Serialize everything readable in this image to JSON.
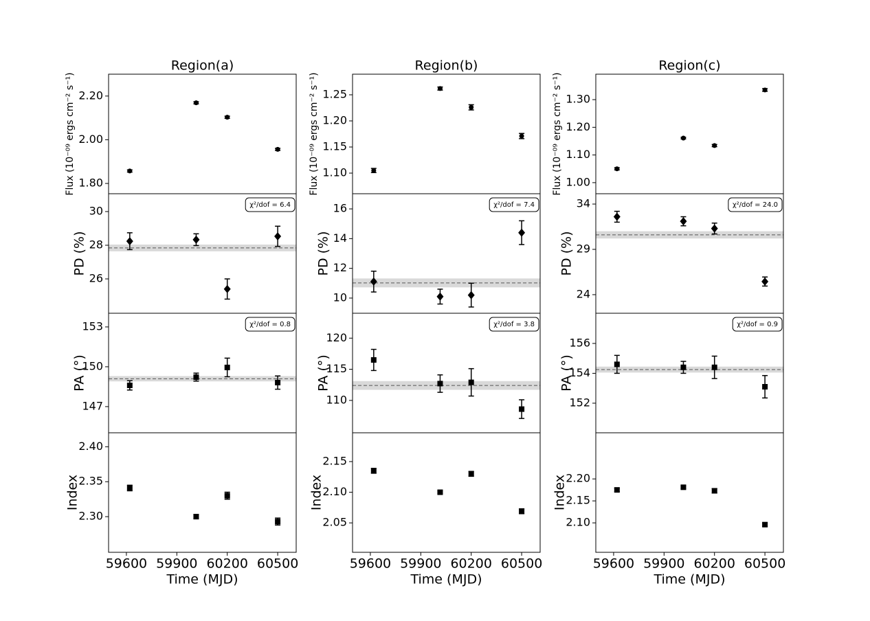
{
  "chart_data": [
    {
      "type": "scatter",
      "title": "Region(a)",
      "ylabel": "Flux (10⁻⁰⁹ ergs cm⁻² s⁻¹)",
      "marker": "circle",
      "color": "#000000",
      "x": [
        59620,
        60015,
        60200,
        60500
      ],
      "values": [
        1.857,
        2.169,
        2.103,
        1.956
      ],
      "errors": [
        0.005,
        0.005,
        0.005,
        0.005
      ],
      "xlim": [
        59494,
        60610
      ],
      "ylim": [
        1.753,
        2.3
      ],
      "yticks": [
        {
          "value": 1.8,
          "label": "1.80"
        },
        {
          "value": 2.0,
          "label": "2.00"
        },
        {
          "value": 2.2,
          "label": "2.20"
        }
      ]
    },
    {
      "type": "scatter",
      "ylabel": "PD (%)",
      "marker": "diamond",
      "color": "#000000",
      "annotation": "χ²/dof = 6.4",
      "x": [
        59620,
        60015,
        60200,
        60500
      ],
      "values": [
        28.24,
        28.33,
        25.4,
        28.53
      ],
      "errors": [
        0.5,
        0.35,
        0.6,
        0.6
      ],
      "mean": 27.84,
      "mean_error": 0.2,
      "xlim": [
        59494,
        60610
      ],
      "ylim": [
        23.96,
        31.06
      ],
      "yticks": [
        26,
        28,
        30
      ]
    },
    {
      "type": "scatter",
      "ylabel": "PA (°)",
      "marker": "square",
      "color": "#000000",
      "annotation": "χ²/dof = 0.8",
      "x": [
        59620,
        60015,
        60200,
        60500
      ],
      "values": [
        148.6,
        149.22,
        149.95,
        148.81
      ],
      "errors": [
        0.35,
        0.3,
        0.7,
        0.5
      ],
      "mean": 149.1,
      "mean_error": 0.2,
      "xlim": [
        59494,
        60610
      ],
      "ylim": [
        145.03,
        154.03
      ],
      "yticks": [
        147,
        150,
        153
      ]
    },
    {
      "type": "scatter",
      "ylabel": "Index",
      "xlabel": "Time (MJD)",
      "marker": "square",
      "color": "#000000",
      "x": [
        59620,
        60015,
        60200,
        60500
      ],
      "values": [
        2.341,
        2.3,
        2.33,
        2.293
      ],
      "errors": [
        0.004,
        0.003,
        0.005,
        0.005
      ],
      "xlim": [
        59494,
        60610
      ],
      "xticks": [
        59600,
        59900,
        60200,
        60500
      ],
      "ylim": [
        2.249,
        2.42
      ],
      "yticks": [
        {
          "value": 2.3,
          "label": "2.30"
        },
        2.35,
        {
          "value": 2.4,
          "label": "2.40"
        }
      ]
    },
    {
      "type": "scatter",
      "title": "Region(b)",
      "ylabel": "Flux (10⁻⁰⁹ ergs cm⁻² s⁻¹)",
      "marker": "circle",
      "color": "#000000",
      "x": [
        59620,
        60015,
        60200,
        60500
      ],
      "values": [
        1.105,
        1.262,
        1.226,
        1.171
      ],
      "errors": [
        0.004,
        0.003,
        0.005,
        0.005
      ],
      "xlim": [
        59494,
        60610
      ],
      "ylim": [
        1.0605,
        1.2895
      ],
      "yticks": [
        {
          "value": 1.1,
          "label": "1.10"
        },
        1.15,
        {
          "value": 1.2,
          "label": "1.20"
        },
        1.25
      ]
    },
    {
      "type": "scatter",
      "ylabel": "PD (%)",
      "marker": "diamond",
      "color": "#000000",
      "annotation": "χ²/dof = 7.4",
      "x": [
        59620,
        60015,
        60200,
        60500
      ],
      "values": [
        11.11,
        10.1,
        10.2,
        14.4
      ],
      "errors": [
        0.7,
        0.5,
        0.8,
        0.8
      ],
      "mean": 11.02,
      "mean_error": 0.3,
      "xlim": [
        59494,
        60610
      ],
      "ylim": [
        8.98,
        17.02
      ],
      "yticks": [
        10,
        12,
        14,
        16
      ]
    },
    {
      "type": "scatter",
      "ylabel": "PA (°)",
      "marker": "square",
      "color": "#000000",
      "annotation": "χ²/dof = 3.8",
      "x": [
        59620,
        60015,
        60200,
        60500
      ],
      "values": [
        116.5,
        112.7,
        112.9,
        108.6
      ],
      "errors": [
        1.7,
        1.4,
        2.2,
        1.5
      ],
      "mean": 112.4,
      "mean_error": 0.7,
      "xlim": [
        59494,
        60610
      ],
      "ylim": [
        104.8,
        124.0
      ],
      "yticks": [
        110,
        115,
        120
      ]
    },
    {
      "type": "scatter",
      "ylabel": "Index",
      "xlabel": "Time (MJD)",
      "marker": "square",
      "color": "#000000",
      "x": [
        59620,
        60015,
        60200,
        60500
      ],
      "values": [
        2.135,
        2.1,
        2.13,
        2.069
      ],
      "errors": [
        0.004,
        0.002,
        0.004,
        0.004
      ],
      "xlim": [
        59494,
        60610
      ],
      "xticks": [
        59600,
        59900,
        60200,
        60500
      ],
      "ylim": [
        2.002,
        2.197
      ],
      "yticks": [
        2.05,
        {
          "value": 2.1,
          "label": "2.10"
        },
        2.15
      ]
    },
    {
      "type": "scatter",
      "title": "Region(c)",
      "ylabel": "Flux (10⁻⁰⁹ ergs cm⁻² s⁻¹)",
      "marker": "circle",
      "color": "#000000",
      "x": [
        59620,
        60015,
        60200,
        60500
      ],
      "values": [
        1.05,
        1.161,
        1.134,
        1.335
      ],
      "errors": [
        0.004,
        0.003,
        0.004,
        0.005
      ],
      "xlim": [
        59494,
        60610
      ],
      "ylim": [
        0.96,
        1.392
      ],
      "yticks": [
        {
          "value": 1.0,
          "label": "1.00"
        },
        {
          "value": 1.1,
          "label": "1.10"
        },
        {
          "value": 1.2,
          "label": "1.20"
        },
        {
          "value": 1.3,
          "label": "1.30"
        }
      ]
    },
    {
      "type": "scatter",
      "ylabel": "PD (%)",
      "marker": "diamond",
      "color": "#000000",
      "annotation": "χ²/dof = 24.0",
      "x": [
        59620,
        60015,
        60200,
        60500
      ],
      "values": [
        32.6,
        32.1,
        31.3,
        25.45
      ],
      "errors": [
        0.6,
        0.5,
        0.6,
        0.5
      ],
      "mean": 30.6,
      "mean_error": 0.4,
      "xlim": [
        59494,
        60610
      ],
      "ylim": [
        21.95,
        35.14
      ],
      "yticks": [
        24,
        29,
        34
      ]
    },
    {
      "type": "scatter",
      "ylabel": "PA (°)",
      "marker": "square",
      "color": "#000000",
      "annotation": "χ²/dof = 0.9",
      "x": [
        59620,
        60015,
        60200,
        60500
      ],
      "values": [
        154.6,
        154.4,
        154.4,
        153.1
      ],
      "errors": [
        0.6,
        0.4,
        0.75,
        0.75
      ],
      "mean": 154.25,
      "mean_error": 0.2,
      "xlim": [
        59494,
        60610
      ],
      "ylim": [
        150.02,
        158.02
      ],
      "yticks": [
        152,
        154,
        156
      ]
    },
    {
      "type": "scatter",
      "ylabel": "Index",
      "xlabel": "Time (MJD)",
      "marker": "square",
      "color": "#000000",
      "x": [
        59620,
        60015,
        60200,
        60500
      ],
      "values": [
        2.175,
        2.181,
        2.173,
        2.096
      ],
      "errors": [
        0.004,
        0.003,
        0.005,
        0.004
      ],
      "xlim": [
        59494,
        60610
      ],
      "xticks": [
        59600,
        59900,
        60200,
        60500
      ],
      "ylim": [
        2.033,
        2.305
      ],
      "yticks": [
        {
          "value": 2.1,
          "label": "2.10"
        },
        2.15,
        {
          "value": 2.2,
          "label": "2.20"
        }
      ]
    }
  ]
}
